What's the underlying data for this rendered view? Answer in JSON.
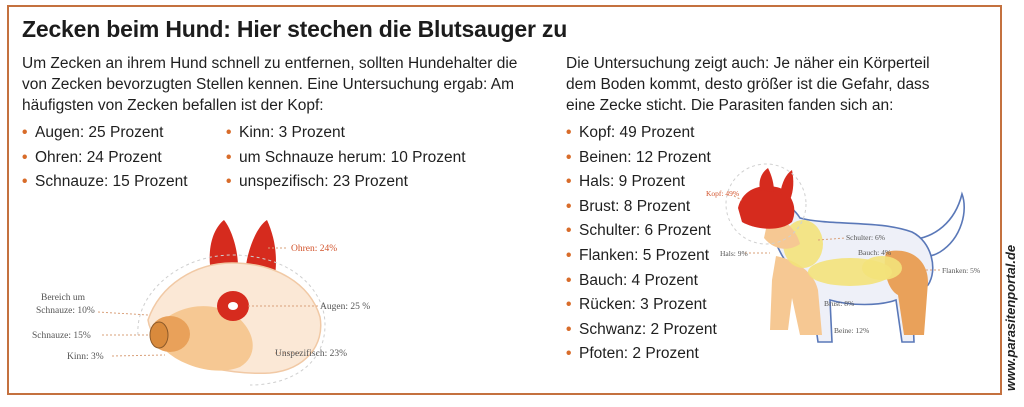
{
  "title": "Zecken beim Hund: Hier stechen die Blutsauger zu",
  "intro_left": "Um Zecken an ihrem Hund schnell zu entfernen, sollten Hundehalter die von Zecken bevorzugten Stellen kennen. Eine Untersuchung ergab: Am häufigsten von Zecken befallen ist der Kopf:",
  "head_list_col1": [
    "Augen: 25 Prozent",
    "Ohren: 24 Prozent",
    "Schnauze: 15 Prozent"
  ],
  "head_list_col2": [
    "Kinn: 3 Prozent",
    "um Schnauze herum: 10 Prozent",
    "unspezifisch: 23 Prozent"
  ],
  "intro_right": "Die Untersuchung zeigt auch: Je näher ein Körperteil dem Boden kommt, desto größer ist die Gefahr, dass eine Zecke sticht. Die Parasiten fanden sich an:",
  "body_list": [
    "Kopf: 49 Prozent",
    "Beinen: 12 Prozent",
    "Hals: 9 Prozent",
    "Brust: 8 Prozent",
    "Schulter: 6 Prozent",
    "Flanken: 5 Prozent",
    "Bauch: 4 Prozent",
    "Rücken: 3 Prozent",
    "Schwanz: 2 Prozent",
    "Pfoten: 2 Prozent"
  ],
  "head_labels": {
    "ohren": "Ohren: 24%",
    "augen": "Augen: 25 %",
    "bereich1": "Bereich um",
    "bereich2": "Schnauze: 10%",
    "schnauze": "Schnauze: 15%",
    "kinn": "Kinn: 3%",
    "unspezifisch": "Unspezifisch: 23%"
  },
  "body_labels": {
    "kopf": "Kopf: 49%",
    "hals": "Hals: 9%",
    "schulter": "Schulter: 6%",
    "bauch": "Bauch: 4%",
    "flanken": "Flanken: 5%",
    "brust": "Brust: 8%",
    "beine": "Beine: 12%"
  },
  "credit": "www.parasitenportal.de",
  "colors": {
    "frame": "#c4713f",
    "bullet": "#d86c2a",
    "red": "#d62b1e",
    "orange": "#e9a15a",
    "light_orange": "#f6c893",
    "yellow": "#f3e27a",
    "peach": "#fbe8d6",
    "blue_outline": "#5a78b8"
  }
}
